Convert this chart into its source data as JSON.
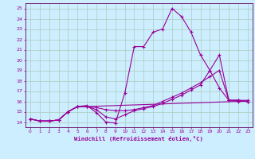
{
  "xlabel": "Windchill (Refroidissement éolien,°C)",
  "background_color": "#cceeff",
  "grid_color": "#aaccbb",
  "line_color": "#990099",
  "spine_color": "#660066",
  "xlim": [
    -0.5,
    23.5
  ],
  "ylim": [
    13.5,
    25.5
  ],
  "xticks": [
    0,
    1,
    2,
    3,
    4,
    5,
    6,
    7,
    8,
    9,
    10,
    11,
    12,
    13,
    14,
    15,
    16,
    17,
    18,
    19,
    20,
    21,
    22,
    23
  ],
  "yticks": [
    14,
    15,
    16,
    17,
    18,
    19,
    20,
    21,
    22,
    23,
    24,
    25
  ],
  "lines": [
    {
      "x": [
        0,
        1,
        2,
        3,
        4,
        5,
        6,
        7,
        8,
        9,
        10,
        11,
        12,
        13,
        14,
        15,
        16,
        17,
        18,
        19,
        20,
        21,
        22,
        23
      ],
      "y": [
        14.3,
        14.1,
        14.1,
        14.2,
        15.0,
        15.5,
        15.6,
        14.9,
        14.0,
        13.9,
        16.8,
        21.3,
        21.3,
        22.7,
        23.0,
        25.0,
        24.2,
        22.7,
        20.5,
        19.0,
        17.3,
        16.1,
        16.1,
        16.1
      ]
    },
    {
      "x": [
        0,
        1,
        2,
        3,
        4,
        5,
        6,
        7,
        8,
        9,
        10,
        11,
        12,
        13,
        14,
        15,
        16,
        17,
        18,
        19,
        20,
        21,
        22,
        23
      ],
      "y": [
        14.3,
        14.1,
        14.1,
        14.2,
        15.0,
        15.5,
        15.5,
        15.4,
        15.2,
        15.1,
        15.1,
        15.2,
        15.4,
        15.6,
        16.0,
        16.4,
        16.8,
        17.3,
        17.8,
        18.4,
        19.0,
        16.1,
        16.1,
        16.0
      ]
    },
    {
      "x": [
        0,
        1,
        2,
        3,
        4,
        5,
        6,
        7,
        8,
        9,
        10,
        11,
        12,
        13,
        14,
        15,
        16,
        17,
        18,
        19,
        20,
        21,
        22,
        23
      ],
      "y": [
        14.3,
        14.1,
        14.1,
        14.2,
        15.0,
        15.5,
        15.5,
        15.2,
        14.5,
        14.3,
        14.7,
        15.1,
        15.3,
        15.5,
        15.8,
        16.2,
        16.6,
        17.1,
        17.6,
        19.0,
        20.5,
        16.1,
        16.1,
        16.0
      ]
    },
    {
      "x": [
        0,
        1,
        2,
        3,
        4,
        5,
        6,
        22,
        23
      ],
      "y": [
        14.3,
        14.1,
        14.1,
        14.2,
        15.0,
        15.5,
        15.5,
        16.0,
        16.0
      ]
    }
  ]
}
